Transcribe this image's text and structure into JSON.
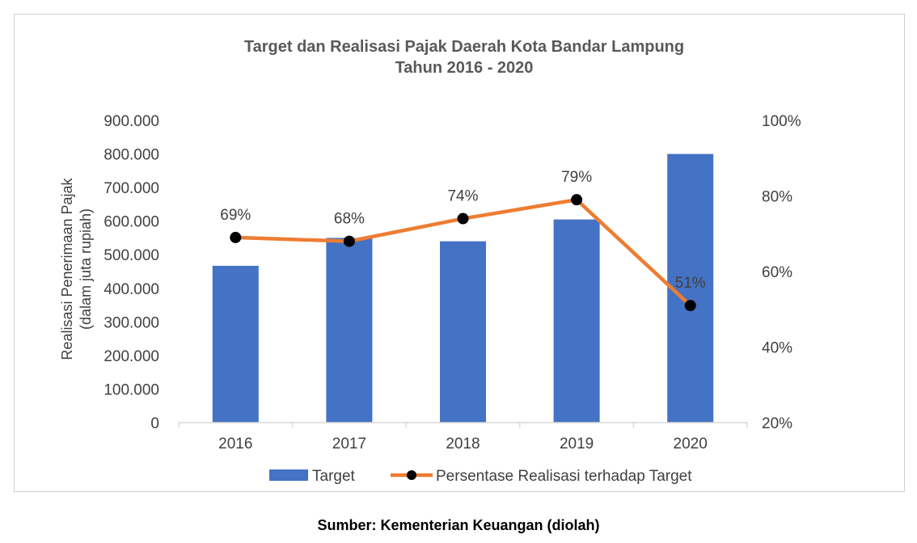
{
  "chart_data": {
    "type": "bar",
    "title_lines": [
      "Target dan Realisasi Pajak Daerah Kota Bandar Lampung",
      "Tahun 2016 - 2020"
    ],
    "ylabel_lines": [
      "Realisasi Penerimaan Pajak",
      "(dalam juta rupiah)"
    ],
    "xlabel": "",
    "categories": [
      "2016",
      "2017",
      "2018",
      "2019",
      "2020"
    ],
    "ylim": [
      0,
      900000
    ],
    "y_ticks": [
      0,
      100000,
      200000,
      300000,
      400000,
      500000,
      600000,
      700000,
      800000,
      900000
    ],
    "y_tick_labels": [
      "0",
      "100.000",
      "200.000",
      "300.000",
      "400.000",
      "500.000",
      "600.000",
      "700.000",
      "800.000",
      "900.000"
    ],
    "y2lim": [
      20,
      100
    ],
    "y2_ticks": [
      20,
      40,
      60,
      80,
      100
    ],
    "y2_tick_labels": [
      "20%",
      "40%",
      "60%",
      "80%",
      "100%"
    ],
    "series": [
      {
        "name": "Target",
        "type": "bar",
        "axis": "left",
        "color": "#4472c4",
        "values": [
          467000,
          550000,
          540000,
          605000,
          800000
        ]
      },
      {
        "name": "Persentase Realisasi terhadap Target",
        "type": "line",
        "axis": "right",
        "color": "#ed7d31",
        "marker_color": "#000000",
        "values": [
          69,
          68,
          74,
          79,
          51
        ],
        "labels": [
          "69%",
          "68%",
          "74%",
          "79%",
          "51%"
        ]
      }
    ],
    "grid": false,
    "legend_position": "bottom"
  },
  "source_note": "Sumber: Kementerian Keuangan (diolah)"
}
